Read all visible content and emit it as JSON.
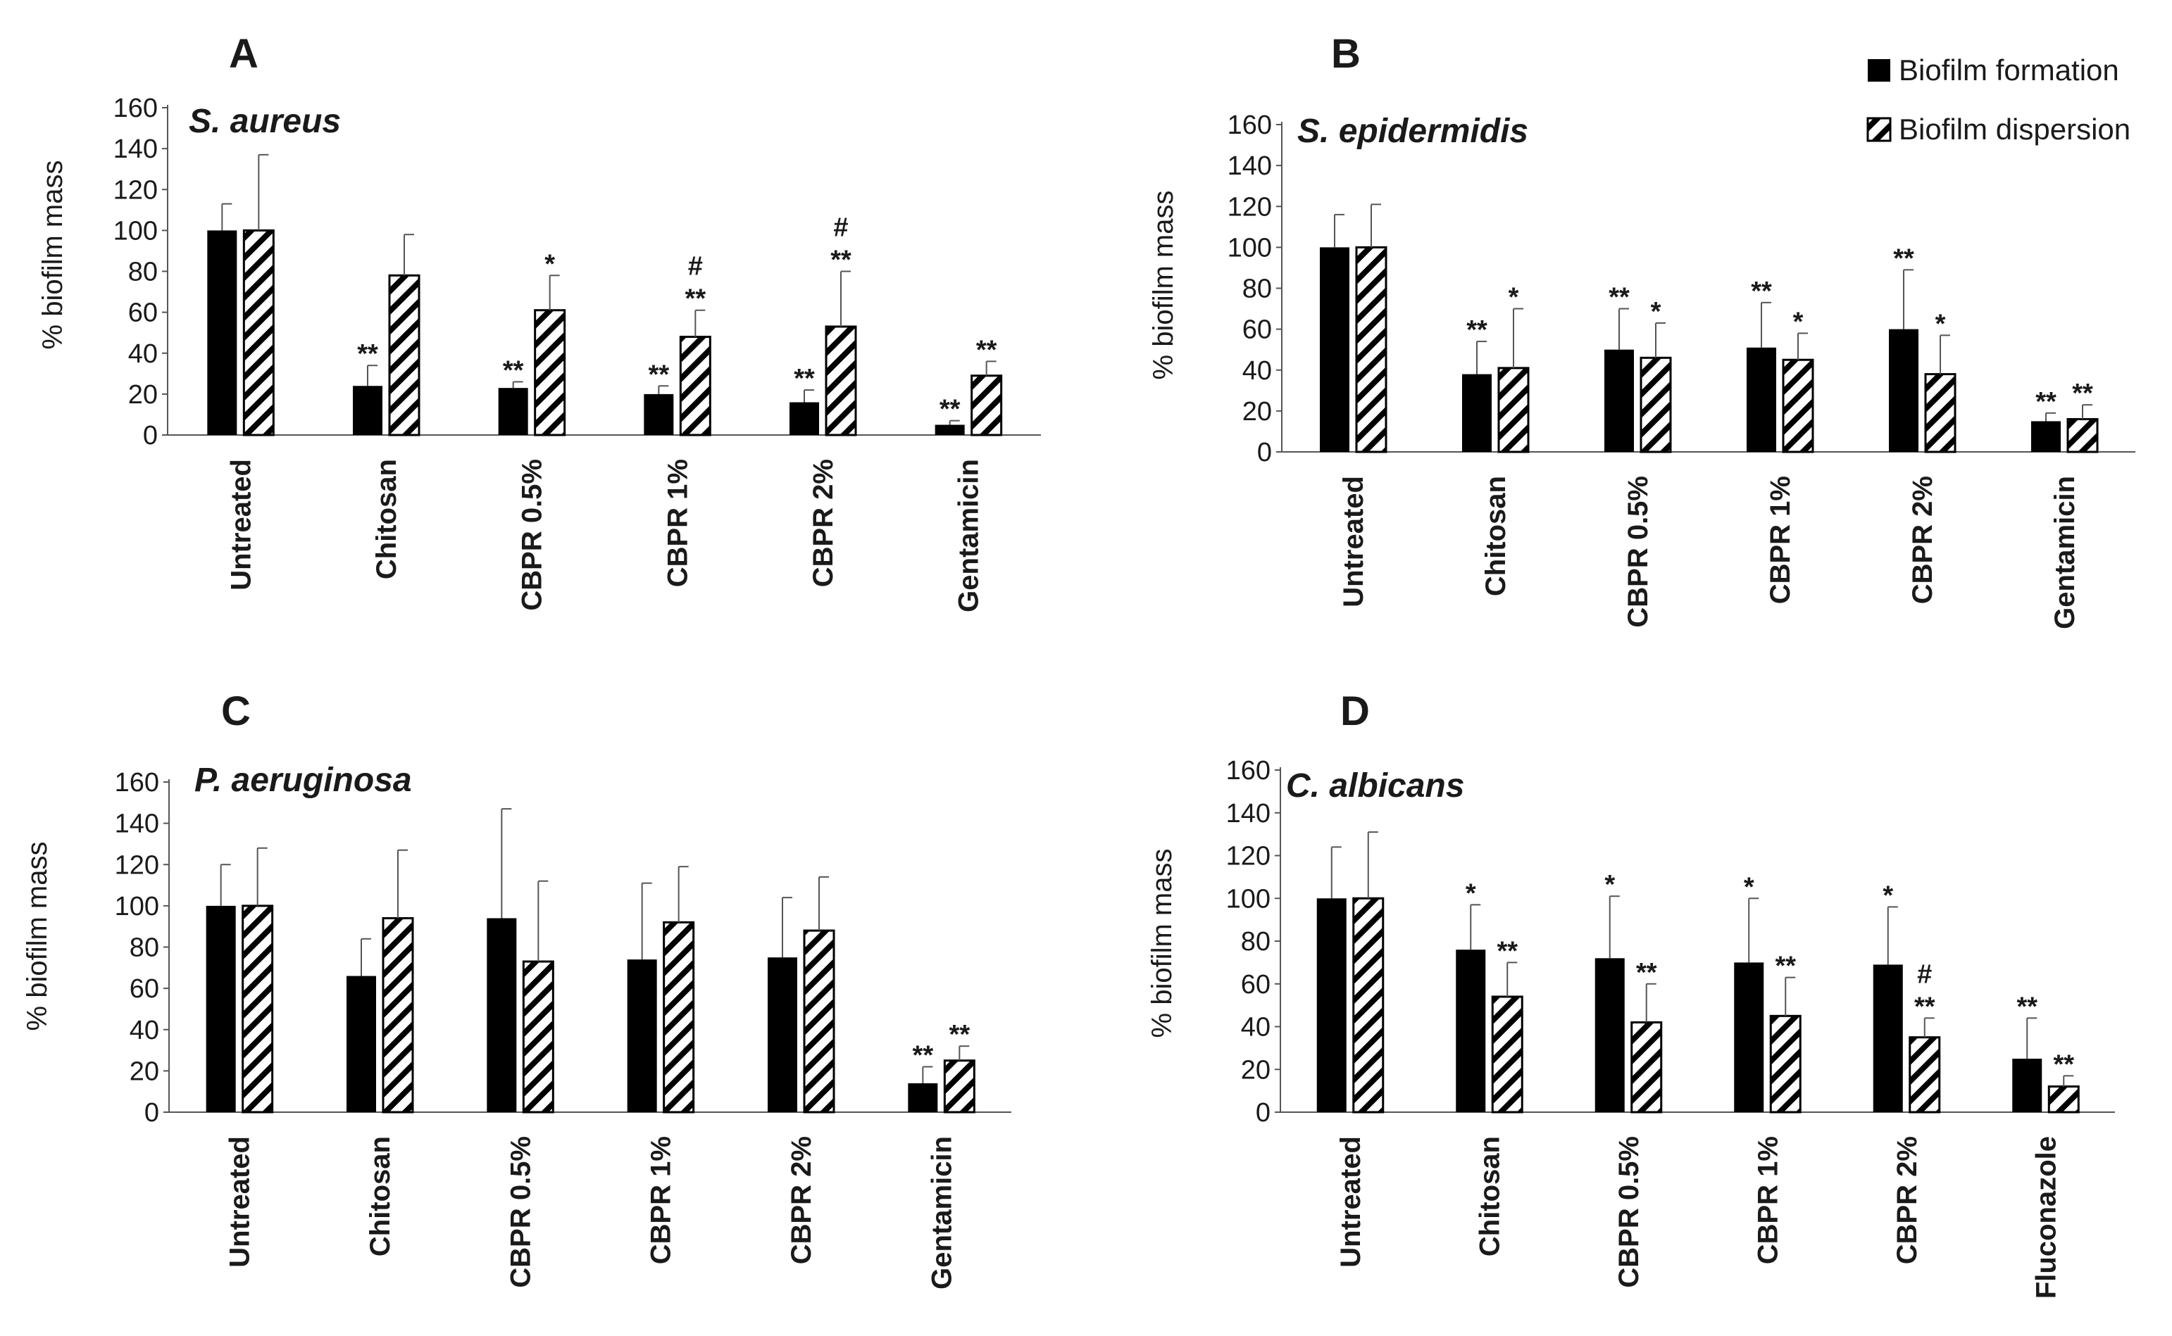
{
  "legend": {
    "formation": "Biofilm formation",
    "dispersion": "Biofilm dispersion"
  },
  "colors": {
    "bar": "#000000",
    "axis": "#555555",
    "errorbar": "#555555"
  },
  "chart_data": [
    {
      "panel": "A",
      "type": "bar",
      "title": "S. aureus",
      "ylabel": "% biofilm mass",
      "xlabel": "",
      "ylim": [
        0,
        160
      ],
      "yticks": [
        0,
        20,
        40,
        60,
        80,
        100,
        120,
        140,
        160
      ],
      "categories": [
        "Untreated",
        "Chitosan",
        "CBPR 0.5%",
        "CBPR 1%",
        "CBPR 2%",
        "Gentamicin"
      ],
      "series": [
        {
          "name": "Biofilm formation",
          "values": [
            100,
            24,
            23,
            20,
            16,
            5
          ],
          "errors": [
            13,
            10,
            3,
            4,
            6,
            2
          ]
        },
        {
          "name": "Biofilm dispersion",
          "values": [
            100,
            78,
            61,
            48,
            53,
            29
          ],
          "errors": [
            37,
            20,
            17,
            13,
            27,
            7
          ]
        }
      ],
      "significance": [
        {
          "category": 1,
          "series": 0,
          "marks": [
            "**"
          ]
        },
        {
          "category": 2,
          "series": 0,
          "marks": [
            "**"
          ]
        },
        {
          "category": 2,
          "series": 1,
          "marks": [
            "*"
          ]
        },
        {
          "category": 3,
          "series": 0,
          "marks": [
            "**"
          ]
        },
        {
          "category": 3,
          "series": 1,
          "marks": [
            "**",
            "#"
          ]
        },
        {
          "category": 4,
          "series": 0,
          "marks": [
            "**"
          ]
        },
        {
          "category": 4,
          "series": 1,
          "marks": [
            "**",
            "#"
          ]
        },
        {
          "category": 5,
          "series": 0,
          "marks": [
            "**"
          ]
        },
        {
          "category": 5,
          "series": 1,
          "marks": [
            "**"
          ]
        }
      ]
    },
    {
      "panel": "B",
      "type": "bar",
      "title": "S. epidermidis",
      "ylabel": "% biofilm mass",
      "xlabel": "",
      "ylim": [
        0,
        160
      ],
      "yticks": [
        0,
        20,
        40,
        60,
        80,
        100,
        120,
        140,
        160
      ],
      "categories": [
        "Untreated",
        "Chitosan",
        "CBPR 0.5%",
        "CBPR 1%",
        "CBPR 2%",
        "Gentamicin"
      ],
      "series": [
        {
          "name": "Biofilm formation",
          "values": [
            100,
            38,
            50,
            51,
            60,
            15
          ],
          "errors": [
            16,
            16,
            20,
            22,
            29,
            4
          ]
        },
        {
          "name": "Biofilm dispersion",
          "values": [
            100,
            41,
            46,
            45,
            38,
            16
          ],
          "errors": [
            21,
            29,
            17,
            13,
            19,
            7
          ]
        }
      ],
      "significance": [
        {
          "category": 1,
          "series": 0,
          "marks": [
            "**"
          ]
        },
        {
          "category": 1,
          "series": 1,
          "marks": [
            "*"
          ]
        },
        {
          "category": 2,
          "series": 0,
          "marks": [
            "**"
          ]
        },
        {
          "category": 2,
          "series": 1,
          "marks": [
            "*"
          ]
        },
        {
          "category": 3,
          "series": 0,
          "marks": [
            "**"
          ]
        },
        {
          "category": 3,
          "series": 1,
          "marks": [
            "*"
          ]
        },
        {
          "category": 4,
          "series": 0,
          "marks": [
            "**"
          ]
        },
        {
          "category": 4,
          "series": 1,
          "marks": [
            "*"
          ]
        },
        {
          "category": 5,
          "series": 0,
          "marks": [
            "**"
          ]
        },
        {
          "category": 5,
          "series": 1,
          "marks": [
            "**"
          ]
        }
      ]
    },
    {
      "panel": "C",
      "type": "bar",
      "title": "P. aeruginosa",
      "ylabel": "% biofilm mass",
      "xlabel": "",
      "ylim": [
        0,
        160
      ],
      "yticks": [
        0,
        20,
        40,
        60,
        80,
        100,
        120,
        140,
        160
      ],
      "categories": [
        "Untreated",
        "Chitosan",
        "CBPR 0.5%",
        "CBPR 1%",
        "CBPR 2%",
        "Gentamicin"
      ],
      "series": [
        {
          "name": "Biofilm formation",
          "values": [
            100,
            66,
            94,
            74,
            75,
            14
          ],
          "errors": [
            20,
            18,
            53,
            37,
            29,
            8
          ]
        },
        {
          "name": "Biofilm dispersion",
          "values": [
            100,
            94,
            73,
            92,
            88,
            25
          ],
          "errors": [
            28,
            33,
            39,
            27,
            26,
            7
          ]
        }
      ],
      "significance": [
        {
          "category": 5,
          "series": 0,
          "marks": [
            "**"
          ]
        },
        {
          "category": 5,
          "series": 1,
          "marks": [
            "**"
          ]
        }
      ]
    },
    {
      "panel": "D",
      "type": "bar",
      "title": "C. albicans",
      "ylabel": "% biofilm mass",
      "xlabel": "",
      "ylim": [
        0,
        160
      ],
      "yticks": [
        0,
        20,
        40,
        60,
        80,
        100,
        120,
        140,
        160
      ],
      "categories": [
        "Untreated",
        "Chitosan",
        "CBPR 0.5%",
        "CBPR 1%",
        "CBPR 2%",
        "Fluconazole"
      ],
      "series": [
        {
          "name": "Biofilm formation",
          "values": [
            100,
            76,
            72,
            70,
            69,
            25
          ],
          "errors": [
            24,
            21,
            29,
            30,
            27,
            19
          ]
        },
        {
          "name": "Biofilm dispersion",
          "values": [
            100,
            54,
            42,
            45,
            35,
            12
          ],
          "errors": [
            31,
            16,
            18,
            18,
            9,
            5
          ]
        }
      ],
      "significance": [
        {
          "category": 1,
          "series": 0,
          "marks": [
            "*"
          ]
        },
        {
          "category": 1,
          "series": 1,
          "marks": [
            "**"
          ]
        },
        {
          "category": 2,
          "series": 0,
          "marks": [
            "*"
          ]
        },
        {
          "category": 2,
          "series": 1,
          "marks": [
            "**"
          ]
        },
        {
          "category": 3,
          "series": 0,
          "marks": [
            "*"
          ]
        },
        {
          "category": 3,
          "series": 1,
          "marks": [
            "**"
          ]
        },
        {
          "category": 4,
          "series": 0,
          "marks": [
            "*"
          ]
        },
        {
          "category": 4,
          "series": 1,
          "marks": [
            "**",
            "#"
          ]
        },
        {
          "category": 5,
          "series": 0,
          "marks": [
            "**"
          ]
        },
        {
          "category": 5,
          "series": 1,
          "marks": [
            "**"
          ]
        }
      ]
    }
  ]
}
